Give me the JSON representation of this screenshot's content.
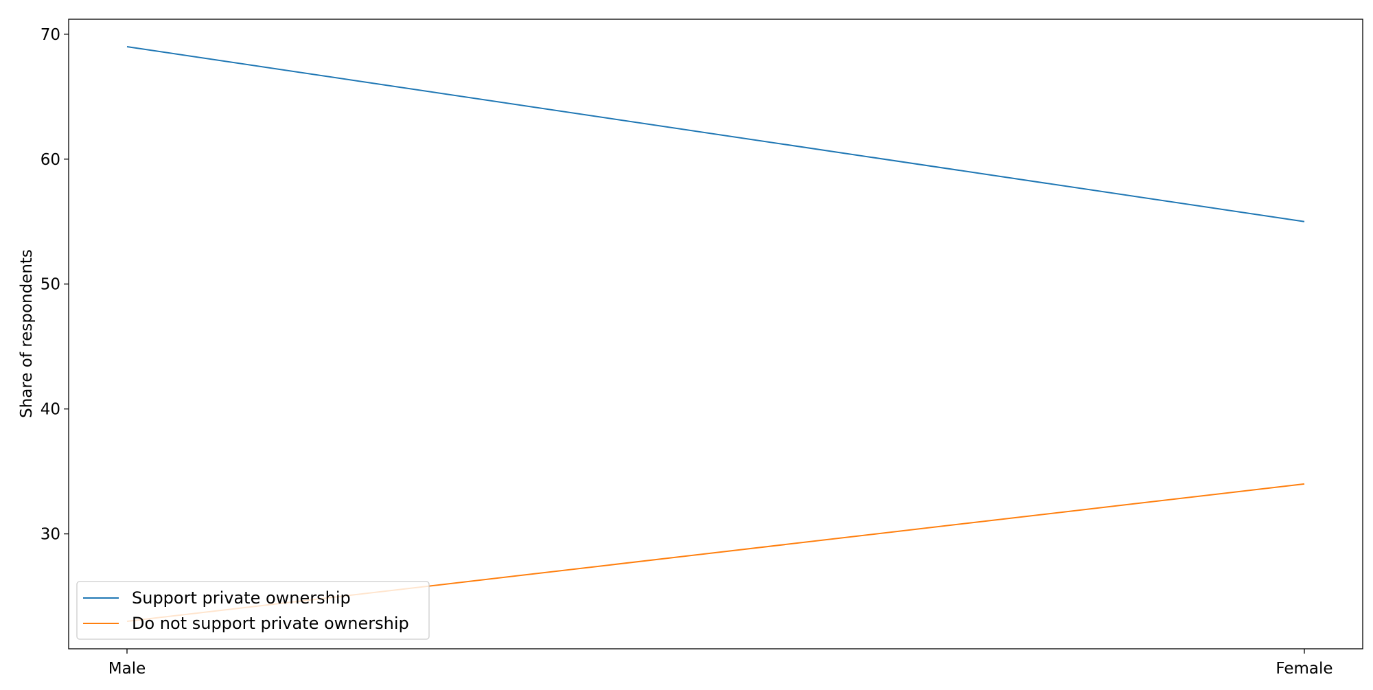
{
  "chart_data": {
    "type": "line",
    "categories": [
      "Male",
      "Female"
    ],
    "series": [
      {
        "name": "Support private ownership",
        "values": [
          69,
          55
        ],
        "color": "#1f77b4"
      },
      {
        "name": "Do not support private ownership",
        "values": [
          23,
          34
        ],
        "color": "#ff7f0e"
      }
    ],
    "title": "",
    "xlabel": "",
    "ylabel": "Share of respondents",
    "ylim": [
      20.8,
      71.2
    ],
    "yticks": [
      30,
      40,
      50,
      60,
      70
    ],
    "grid": false,
    "legend_position": "lower-left"
  }
}
